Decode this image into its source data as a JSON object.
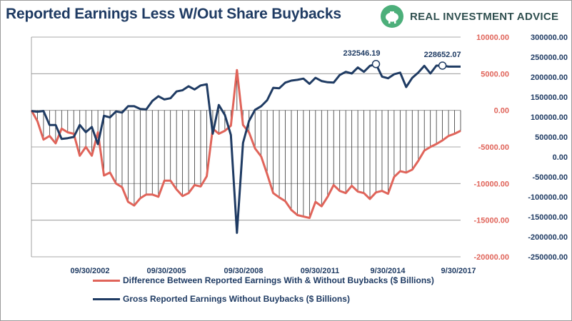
{
  "header": {
    "title": "Reported Earnings Less W/Out Share Buybacks",
    "brand_name": "REAL INVESTMENT ADVICE",
    "brand_icon": "piggy-bank-icon"
  },
  "colors": {
    "diff_series": "#e0645a",
    "gross_series": "#1f3b63",
    "title": "#1f3b63",
    "left_axis_labels": "#e0645a",
    "right_axis_labels": "#1f3b63",
    "brand_green": "#4caf7a"
  },
  "chart_data": {
    "type": "line",
    "title": "Reported Earnings Less W/Out Share Buybacks",
    "grid": true,
    "legend_placement": "bottom",
    "x_tick_labels": [
      "09/30/2002",
      "09/30/2005",
      "09/30/2008",
      "09/30/2011",
      "9/30/2014",
      "9/30/2017"
    ],
    "y_left": {
      "range": [
        -20000,
        10000
      ],
      "ticks": [
        "10000.00",
        "5000.00",
        "0.00",
        "-5000.00",
        "-10000.00",
        "-15000.00",
        "-20000.00"
      ]
    },
    "y_right": {
      "range": [
        -250000,
        300000
      ],
      "ticks": [
        "300000.00",
        "250000.00",
        "200000.00",
        "150000.00",
        "100000.00",
        "50000.00",
        "0.00",
        "-50000.00",
        "-100000.00",
        "-150000.00",
        "-200000.00",
        "-250000.00"
      ]
    },
    "x_range": [
      0,
      71
    ],
    "series": [
      {
        "name": "Difference Between Reported Earnings With & Without Buybacks ($ Billions)",
        "axis": "left",
        "style": "drop-lines",
        "values": [
          0,
          -1500,
          -4000,
          -3500,
          -4500,
          -2500,
          -3000,
          -3200,
          -6200,
          -5000,
          -6200,
          -3000,
          -8900,
          -8500,
          -10000,
          -10500,
          -12500,
          -13000,
          -12000,
          -11500,
          -11500,
          -11800,
          -9600,
          -9600,
          -10800,
          -11700,
          -11300,
          -10200,
          -10400,
          -9000,
          -2500,
          -3200,
          -2800,
          -2100,
          5500,
          -2000,
          -3000,
          -5200,
          -6300,
          -8700,
          -11300,
          -11900,
          -12400,
          -13600,
          -14300,
          -14500,
          -14700,
          -12500,
          -13100,
          -11800,
          -10200,
          -11000,
          -11300,
          -10300,
          -11100,
          -11300,
          -12100,
          -11200,
          -11000,
          -11400,
          -9100,
          -8300,
          -8500,
          -8100,
          -6900,
          -5500,
          -5000,
          -4600,
          -4100,
          -3500,
          -3200,
          -2800
        ]
      },
      {
        "name": "Gross Reported Earnings Without Buybacks ($ Billions)",
        "axis": "right",
        "values": [
          115000,
          113000,
          115000,
          80000,
          80000,
          45000,
          47000,
          50000,
          80000,
          62000,
          75000,
          32000,
          103000,
          99000,
          114000,
          111000,
          127000,
          127000,
          120000,
          119000,
          140000,
          152000,
          144000,
          147000,
          164000,
          167000,
          177000,
          169000,
          179000,
          182000,
          58000,
          130000,
          105000,
          55000,
          -190000,
          35000,
          90000,
          118000,
          127000,
          142000,
          173000,
          172000,
          186000,
          191000,
          193000,
          196000,
          183000,
          198000,
          190000,
          187000,
          186000,
          205000,
          213000,
          209000,
          224000,
          213000,
          228000,
          232546.19,
          201000,
          197000,
          207000,
          211000,
          175000,
          198000,
          211000,
          228000,
          209000,
          228652.07,
          228652.07,
          226000,
          226000,
          226000
        ]
      }
    ],
    "annotations": [
      "232546.19",
      "228652.07"
    ]
  },
  "legend": {
    "diff_label": "Difference Between Reported Earnings With & Without Buybacks ($ Billions)",
    "gross_label": "Gross Reported Earnings Without Buybacks ($ Billions)"
  }
}
